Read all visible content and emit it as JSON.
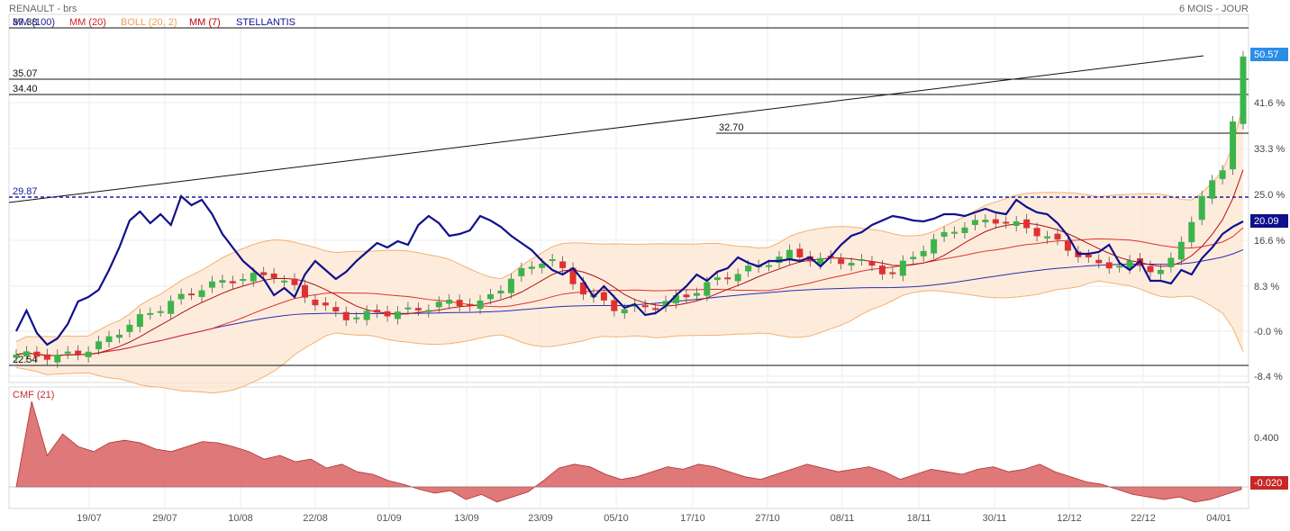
{
  "chart_data": {
    "type": "candlestick",
    "title": "RENAULT - brs",
    "period_label": "6 MOIS - JOUR",
    "legend": [
      {
        "name": "MM (100)",
        "color": "#1a1aa0"
      },
      {
        "name": "MM (20)",
        "color": "#d62020"
      },
      {
        "name": "BOLL (20, 2)",
        "color": "#f0a050"
      },
      {
        "name": "MM (7)",
        "color": "#c00000"
      },
      {
        "name": "STELLANTIS",
        "color": "#1010a0"
      }
    ],
    "overlap_label": "37.38",
    "x_labels": [
      "19/07",
      "29/07",
      "10/08",
      "22/08",
      "01/09",
      "13/09",
      "23/09",
      "05/10",
      "17/10",
      "27/10",
      "08/11",
      "18/11",
      "30/11",
      "12/12",
      "22/12",
      "04/01"
    ],
    "right_axis_labels": [
      "41.6 %",
      "33.3 %",
      "25.0 %",
      "16.6 %",
      "8.3 %",
      "-0.0 %",
      "-8.4 %"
    ],
    "horizontal_levels": [
      {
        "label": "35.07",
        "value": 35.07
      },
      {
        "label": "34.40",
        "value": 34.4
      },
      {
        "label": "32.70",
        "value": 32.7
      },
      {
        "label": "29.87",
        "value": 29.87,
        "style": "dashed"
      },
      {
        "label": "22.54",
        "value": 22.54
      }
    ],
    "last_price_label": "50.57",
    "stellantis_last_label": "20.09",
    "cmf": {
      "title": "CMF (21)",
      "axis_labels": [
        "0.400",
        "-0.020"
      ],
      "last_label": "-0.020",
      "values": [
        0.0,
        0.68,
        0.25,
        0.42,
        0.32,
        0.28,
        0.35,
        0.37,
        0.35,
        0.3,
        0.28,
        0.32,
        0.36,
        0.35,
        0.32,
        0.28,
        0.22,
        0.25,
        0.2,
        0.22,
        0.15,
        0.18,
        0.12,
        0.1,
        0.05,
        0.02,
        -0.02,
        -0.05,
        -0.03,
        -0.1,
        -0.06,
        -0.12,
        -0.08,
        -0.04,
        0.05,
        0.15,
        0.18,
        0.16,
        0.1,
        0.06,
        0.08,
        0.12,
        0.16,
        0.14,
        0.18,
        0.16,
        0.12,
        0.08,
        0.06,
        0.1,
        0.14,
        0.18,
        0.15,
        0.12,
        0.14,
        0.16,
        0.12,
        0.06,
        0.1,
        0.14,
        0.12,
        0.1,
        0.14,
        0.16,
        0.12,
        0.14,
        0.18,
        0.12,
        0.08,
        0.04,
        0.02,
        -0.02,
        -0.06,
        -0.08,
        -0.1,
        -0.08,
        -0.12,
        -0.1,
        -0.06,
        -0.02
      ]
    }
  }
}
